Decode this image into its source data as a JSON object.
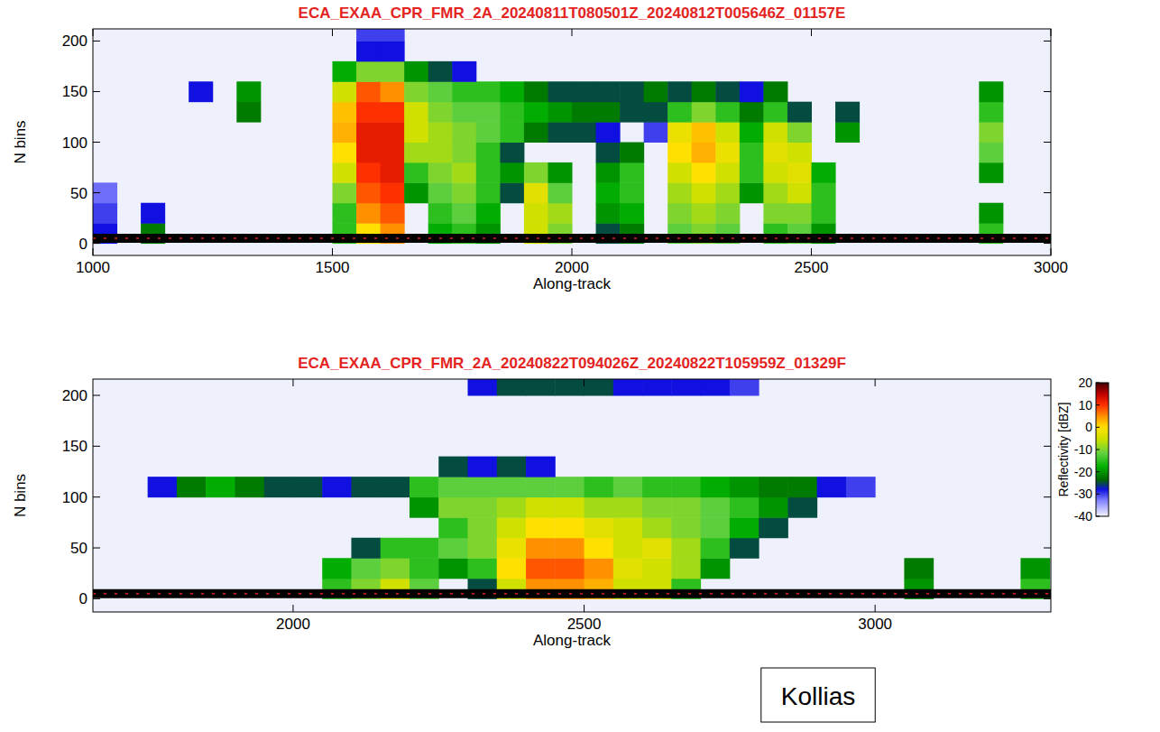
{
  "chart_data": [
    {
      "type": "heatmap",
      "title": "ECA_EXAA_CPR_FMR_2A_20240811T080501Z_20240812T005646Z_01157E",
      "x_label": "Along-track",
      "y_label": "N bins",
      "xlim": [
        1000,
        3000
      ],
      "ylim": [
        -12,
        212
      ],
      "xticks": [
        1000,
        1500,
        2000,
        2500,
        3000
      ],
      "yticks": [
        0,
        50,
        100,
        150,
        200
      ],
      "surface_bin": 5,
      "x": [
        1025,
        1075,
        1125,
        1175,
        1225,
        1275,
        1325,
        1375,
        1425,
        1475,
        1525,
        1575,
        1625,
        1675,
        1725,
        1775,
        1825,
        1875,
        1925,
        1975,
        2025,
        2075,
        2125,
        2175,
        2225,
        2275,
        2325,
        2375,
        2425,
        2475,
        2525,
        2575,
        2625,
        2675,
        2725,
        2775,
        2825,
        2875,
        2925,
        2975
      ],
      "y": [
        10,
        30,
        50,
        70,
        90,
        110,
        130,
        150,
        170,
        190,
        210
      ],
      "cells": [
        [
          -28,
          null,
          -22,
          null,
          null,
          null,
          null,
          null,
          null,
          null,
          -15,
          0,
          5,
          null,
          -18,
          -15,
          -20,
          null,
          -5,
          -10,
          null,
          -25,
          -22,
          null,
          -12,
          -10,
          -12,
          null,
          -15,
          -12,
          -20,
          null,
          null,
          null,
          null,
          null,
          null,
          -15,
          null,
          null
        ],
        [
          -30,
          null,
          -28,
          null,
          null,
          null,
          null,
          null,
          null,
          null,
          -15,
          5,
          8,
          null,
          -15,
          -12,
          -18,
          null,
          -5,
          -8,
          null,
          -20,
          -18,
          null,
          -10,
          -8,
          -10,
          null,
          -10,
          -10,
          -15,
          null,
          null,
          null,
          null,
          null,
          null,
          -20,
          null,
          null
        ],
        [
          -32,
          null,
          null,
          null,
          null,
          null,
          null,
          null,
          null,
          null,
          -10,
          8,
          10,
          -20,
          -12,
          -10,
          -15,
          -25,
          -3,
          -12,
          null,
          -18,
          -15,
          null,
          -8,
          -5,
          -8,
          -20,
          -8,
          -5,
          -15,
          null,
          null,
          null,
          null,
          null,
          null,
          null,
          null,
          null
        ],
        [
          null,
          null,
          null,
          null,
          null,
          null,
          null,
          null,
          null,
          null,
          -5,
          10,
          12,
          -15,
          -10,
          -8,
          -15,
          -20,
          -10,
          -20,
          null,
          -20,
          -15,
          null,
          -5,
          0,
          -5,
          -15,
          -5,
          -3,
          -18,
          null,
          null,
          null,
          null,
          null,
          null,
          -20,
          null,
          null
        ],
        [
          null,
          null,
          null,
          null,
          null,
          null,
          null,
          null,
          null,
          null,
          0,
          12,
          12,
          -8,
          -8,
          -10,
          -15,
          -25,
          null,
          null,
          null,
          -25,
          -22,
          null,
          0,
          3,
          -2,
          -15,
          -3,
          -5,
          null,
          null,
          null,
          null,
          null,
          null,
          null,
          -12,
          null,
          null
        ],
        [
          null,
          null,
          null,
          null,
          null,
          null,
          null,
          null,
          null,
          null,
          3,
          12,
          12,
          -5,
          -8,
          -10,
          -12,
          -15,
          -22,
          -25,
          -25,
          -28,
          null,
          -30,
          -2,
          2,
          -5,
          -18,
          -5,
          -10,
          null,
          -20,
          null,
          null,
          null,
          null,
          null,
          -10,
          null,
          null
        ],
        [
          null,
          null,
          null,
          null,
          null,
          null,
          -22,
          null,
          null,
          null,
          2,
          10,
          10,
          -5,
          -10,
          -12,
          -12,
          -15,
          -18,
          -20,
          -22,
          -22,
          -25,
          -25,
          -15,
          -10,
          -15,
          -22,
          -15,
          -25,
          null,
          -25,
          null,
          null,
          null,
          null,
          null,
          -15,
          null,
          null
        ],
        [
          null,
          null,
          null,
          null,
          -28,
          null,
          -20,
          null,
          null,
          null,
          -5,
          8,
          5,
          -10,
          -12,
          -15,
          -15,
          -18,
          -22,
          -25,
          -25,
          -25,
          -25,
          -22,
          -25,
          -22,
          -25,
          -28,
          -22,
          null,
          null,
          null,
          null,
          null,
          null,
          null,
          null,
          -20,
          null,
          null
        ],
        [
          null,
          null,
          null,
          null,
          null,
          null,
          null,
          null,
          null,
          null,
          -18,
          -10,
          -10,
          -20,
          -25,
          -28,
          null,
          null,
          null,
          null,
          null,
          null,
          null,
          null,
          null,
          null,
          null,
          null,
          null,
          null,
          null,
          null,
          null,
          null,
          null,
          null,
          null,
          null,
          null,
          null
        ],
        [
          null,
          null,
          null,
          null,
          null,
          null,
          null,
          null,
          null,
          null,
          null,
          -28,
          -28,
          null,
          null,
          null,
          null,
          null,
          null,
          null,
          null,
          null,
          null,
          null,
          null,
          null,
          null,
          null,
          null,
          null,
          null,
          null,
          null,
          null,
          null,
          null,
          null,
          null,
          null,
          null
        ],
        [
          null,
          null,
          null,
          null,
          null,
          null,
          null,
          null,
          null,
          null,
          null,
          -30,
          -30,
          null,
          null,
          null,
          null,
          null,
          null,
          null,
          null,
          null,
          null,
          null,
          null,
          null,
          null,
          null,
          null,
          null,
          null,
          null,
          null,
          null,
          null,
          null,
          null,
          null,
          null,
          null
        ]
      ]
    },
    {
      "type": "heatmap",
      "title": "ECA_EXAA_CPR_FMR_2A_20240822T094026Z_20240822T105959Z_01329F",
      "x_label": "Along-track",
      "y_label": "N bins",
      "xlim": [
        1656,
        3302
      ],
      "ylim": [
        -13,
        216
      ],
      "xticks": [
        2000,
        2500,
        3000
      ],
      "yticks": [
        0,
        50,
        100,
        150,
        200
      ],
      "surface_bin": 5,
      "x": [
        1675,
        1725,
        1775,
        1825,
        1875,
        1925,
        1975,
        2025,
        2075,
        2125,
        2175,
        2225,
        2275,
        2325,
        2375,
        2425,
        2475,
        2525,
        2575,
        2625,
        2675,
        2725,
        2775,
        2825,
        2875,
        2925,
        2975,
        3025,
        3075,
        3125,
        3175,
        3225,
        3275
      ],
      "y": [
        10,
        30,
        50,
        70,
        90,
        110,
        130,
        150,
        170,
        190,
        210
      ],
      "cells": [
        [
          null,
          null,
          null,
          null,
          null,
          null,
          null,
          null,
          -15,
          -10,
          -5,
          -12,
          null,
          -25,
          -5,
          5,
          5,
          3,
          -5,
          -5,
          -15,
          null,
          null,
          null,
          null,
          null,
          null,
          null,
          -20,
          null,
          null,
          null,
          -15
        ],
        [
          null,
          null,
          null,
          null,
          null,
          null,
          null,
          null,
          -18,
          -12,
          -10,
          -15,
          -20,
          -15,
          0,
          8,
          8,
          5,
          -3,
          -5,
          -8,
          -20,
          null,
          null,
          null,
          null,
          null,
          null,
          -22,
          null,
          null,
          null,
          -20
        ],
        [
          null,
          null,
          null,
          null,
          null,
          null,
          null,
          null,
          null,
          -25,
          -15,
          -15,
          -12,
          -10,
          -2,
          5,
          5,
          0,
          -5,
          -3,
          -8,
          -15,
          -25,
          null,
          null,
          null,
          null,
          null,
          null,
          null,
          null,
          null,
          null
        ],
        [
          null,
          null,
          null,
          null,
          null,
          null,
          null,
          null,
          null,
          null,
          null,
          null,
          -15,
          -10,
          -5,
          0,
          0,
          -3,
          -5,
          -8,
          -10,
          -12,
          -18,
          -25,
          null,
          null,
          null,
          null,
          null,
          null,
          null,
          null,
          null
        ],
        [
          null,
          null,
          null,
          null,
          null,
          null,
          null,
          null,
          null,
          null,
          null,
          -20,
          -10,
          -10,
          -8,
          -5,
          -5,
          -8,
          -8,
          -10,
          -10,
          -12,
          -15,
          -20,
          -25,
          null,
          null,
          null,
          null,
          null,
          null,
          null,
          null
        ],
        [
          null,
          null,
          -28,
          -22,
          -18,
          -22,
          -25,
          -25,
          -28,
          -25,
          -25,
          -15,
          -12,
          -12,
          -12,
          -12,
          -12,
          -15,
          -12,
          -15,
          -15,
          -18,
          -20,
          -22,
          -22,
          -28,
          -30,
          null,
          null,
          null,
          null,
          null,
          null
        ],
        [
          null,
          null,
          null,
          null,
          null,
          null,
          null,
          null,
          null,
          null,
          null,
          null,
          -25,
          -28,
          -25,
          -28,
          null,
          null,
          null,
          null,
          null,
          null,
          null,
          null,
          null,
          null,
          null,
          null,
          null,
          null,
          null,
          null,
          null
        ],
        [
          null,
          null,
          null,
          null,
          null,
          null,
          null,
          null,
          null,
          null,
          null,
          null,
          null,
          null,
          null,
          null,
          null,
          null,
          null,
          null,
          null,
          null,
          null,
          null,
          null,
          null,
          null,
          null,
          null,
          null,
          null,
          null,
          null
        ],
        [
          null,
          null,
          null,
          null,
          null,
          null,
          null,
          null,
          null,
          null,
          null,
          null,
          null,
          null,
          null,
          null,
          null,
          null,
          null,
          null,
          null,
          null,
          null,
          null,
          null,
          null,
          null,
          null,
          null,
          null,
          null,
          null,
          null
        ],
        [
          null,
          null,
          null,
          null,
          null,
          null,
          null,
          null,
          null,
          null,
          null,
          null,
          null,
          null,
          null,
          null,
          null,
          null,
          null,
          null,
          null,
          null,
          null,
          null,
          null,
          null,
          null,
          null,
          null,
          null,
          null,
          null,
          null
        ],
        [
          null,
          null,
          null,
          null,
          null,
          null,
          null,
          null,
          null,
          null,
          null,
          null,
          null,
          -28,
          -25,
          -25,
          -25,
          -25,
          -28,
          -28,
          -28,
          -28,
          -30,
          null,
          null,
          null,
          null,
          null,
          null,
          null,
          null,
          null,
          null
        ]
      ],
      "colorbar": {
        "label": "Reflectivity [dBZ]",
        "range": [
          -40,
          20
        ],
        "ticks": [
          20,
          10,
          0,
          -10,
          -20,
          -30,
          -40
        ]
      },
      "annotation": "Kollias"
    }
  ]
}
